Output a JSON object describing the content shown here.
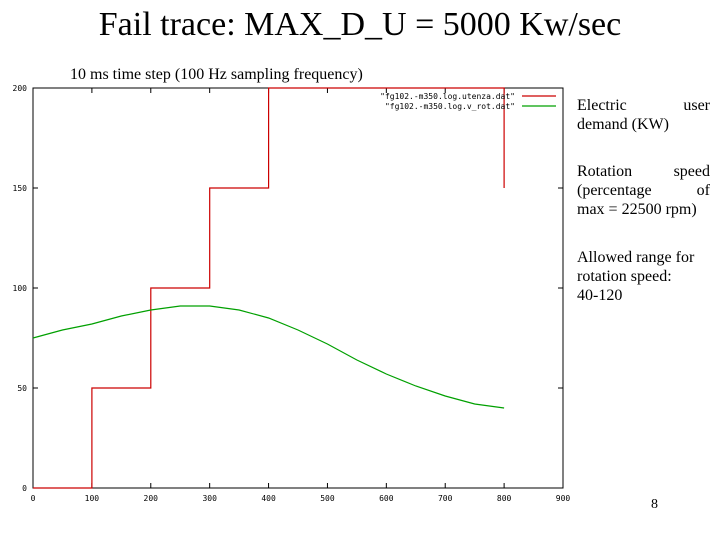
{
  "slide": {
    "title": "Fail trace: MAX_D_U = 5000 Kw/sec",
    "subtitle": "10 ms time step (100 Hz sampling frequency)",
    "notes": [
      {
        "line1": "Electric user",
        "line2": "demand (KW)"
      },
      {
        "line1": "Rotation speed",
        "line2": "(percentage of",
        "line3": "max = 22500 rpm)"
      },
      {
        "line1": "Allowed range for",
        "line2": "rotation speed:",
        "line3": "40-120"
      }
    ],
    "page_number": "8"
  },
  "chart_data": {
    "type": "line",
    "xlim": [
      0,
      900
    ],
    "ylim": [
      0,
      200
    ],
    "x_ticks": [
      "0",
      "100",
      "200",
      "300",
      "400",
      "500",
      "600",
      "700",
      "800",
      "900"
    ],
    "y_ticks": [
      "0",
      "50",
      "100",
      "150",
      "200"
    ],
    "grid": false,
    "legend_position": "top-right",
    "series": [
      {
        "name": "\"fg102.-m350.log.utenza.dat\"",
        "color": "#cc0000",
        "step": true,
        "points": [
          [
            0,
            0
          ],
          [
            100,
            0
          ],
          [
            100,
            50
          ],
          [
            200,
            50
          ],
          [
            200,
            100
          ],
          [
            300,
            100
          ],
          [
            300,
            150
          ],
          [
            400,
            150
          ],
          [
            400,
            200
          ],
          [
            800,
            200
          ],
          [
            800,
            150
          ]
        ]
      },
      {
        "name": "\"fg102.-m350.log.v_rot.dat\"",
        "color": "#00a000",
        "step": false,
        "points": [
          [
            0,
            75
          ],
          [
            50,
            79
          ],
          [
            100,
            82
          ],
          [
            150,
            86
          ],
          [
            200,
            89
          ],
          [
            250,
            91
          ],
          [
            300,
            91
          ],
          [
            350,
            89
          ],
          [
            400,
            85
          ],
          [
            450,
            79
          ],
          [
            500,
            72
          ],
          [
            550,
            64
          ],
          [
            600,
            57
          ],
          [
            650,
            51
          ],
          [
            700,
            46
          ],
          [
            750,
            42
          ],
          [
            800,
            40
          ]
        ]
      }
    ]
  }
}
